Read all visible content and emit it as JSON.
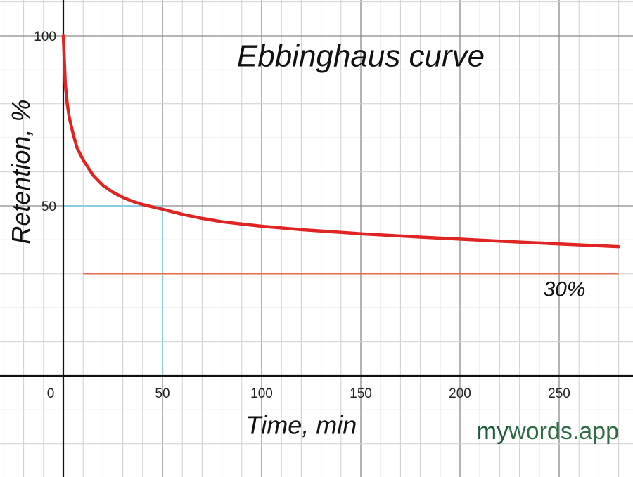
{
  "chart_data": {
    "type": "line",
    "title": "Ebbinghaus curve",
    "xlabel": "Time, min",
    "ylabel": "Retention, %",
    "xlim": [
      0,
      280
    ],
    "ylim": [
      -30,
      105
    ],
    "grid": true,
    "x_ticks": [
      0,
      50,
      100,
      150,
      200,
      250
    ],
    "x_tick_labels": [
      "0",
      "50",
      "100",
      "150",
      "200",
      "250"
    ],
    "y_ticks": [
      50,
      100
    ],
    "y_tick_labels": [
      "50",
      "100"
    ],
    "series": [
      {
        "color": "#e02424",
        "x": [
          0,
          1,
          2,
          3,
          5,
          7,
          10,
          15,
          20,
          25,
          30,
          35,
          40,
          45,
          50,
          60,
          70,
          80,
          100,
          120,
          150,
          180,
          200,
          220,
          250,
          280
        ],
        "y": [
          100,
          86,
          80,
          76,
          71,
          67,
          63.5,
          59,
          56,
          54,
          52.5,
          51.3,
          50.4,
          49.7,
          49,
          47.5,
          46.3,
          45.3,
          44,
          43,
          41.8,
          40.8,
          40.2,
          39.6,
          38.8,
          38
        ]
      }
    ],
    "reference_lines": [
      {
        "orientation": "horizontal",
        "y": 30,
        "x_from": 10,
        "x_to": 280,
        "color": "#e46a4e",
        "label": "30%",
        "label_x": 242,
        "label_y": 23.5
      }
    ],
    "guide_lines": {
      "color": "#8ecbdc",
      "point": {
        "x": 50,
        "y": 50
      }
    },
    "title_position": [
      150,
      91
    ],
    "xlabel_position": [
      120,
      -17
    ],
    "watermark": {
      "part1": "my",
      "part2": "words.app",
      "color1": "#1f5a3a",
      "color2": "#2f6b46"
    }
  }
}
